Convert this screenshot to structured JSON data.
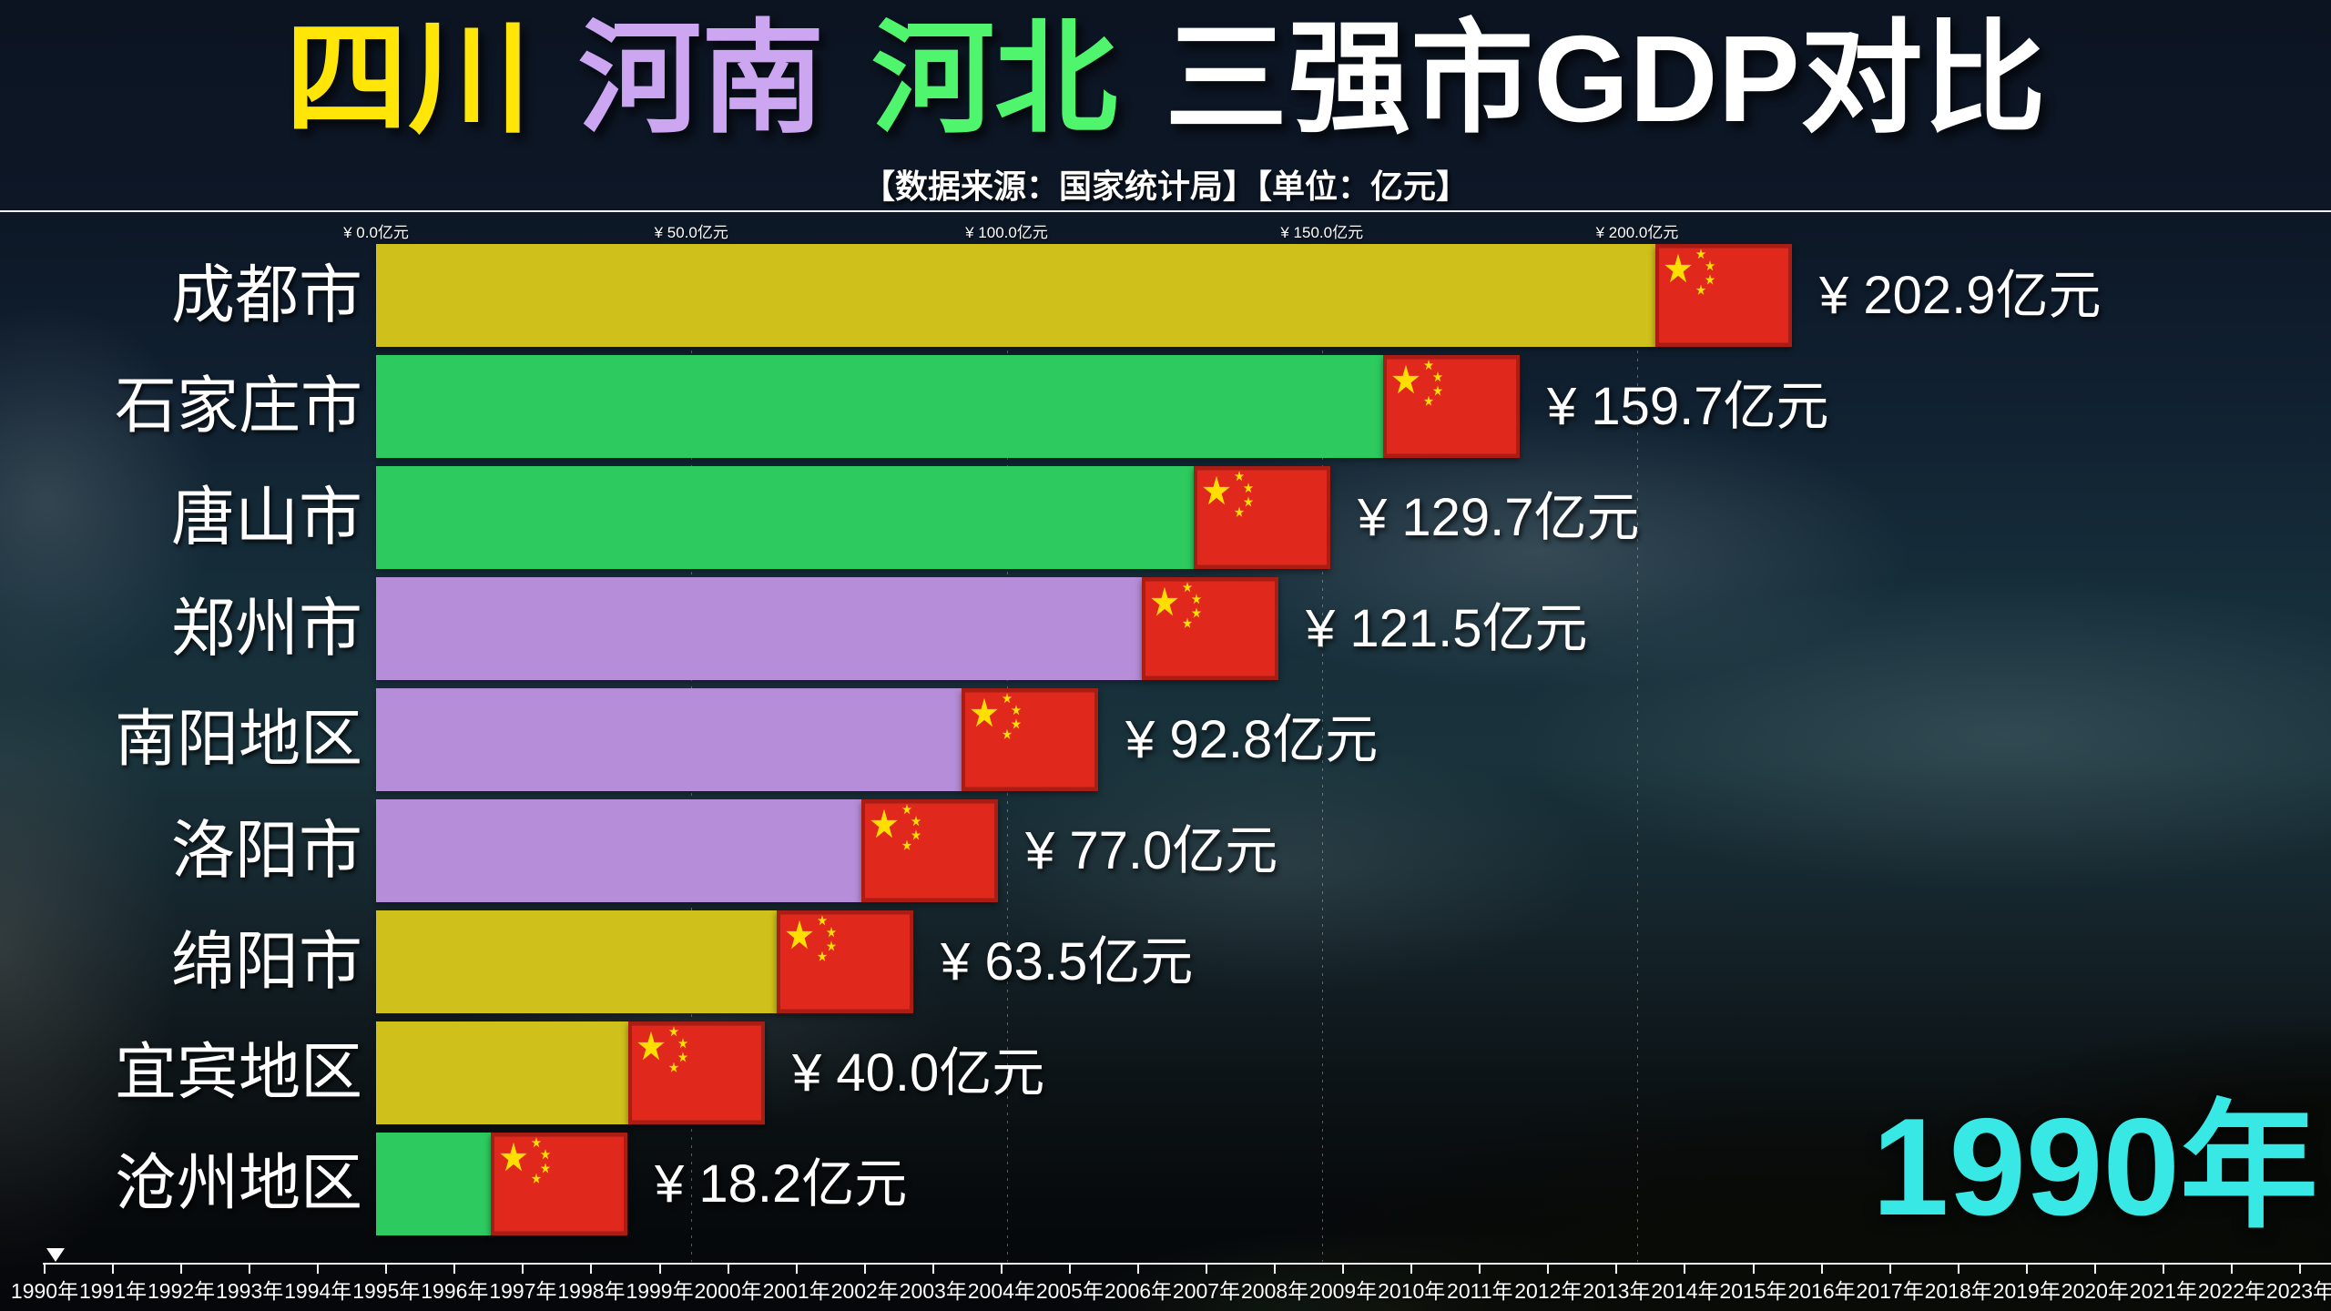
{
  "title": {
    "segments": [
      {
        "text": "四川",
        "color": "#ffe608"
      },
      {
        "text": "河南",
        "color": "#cda6f2"
      },
      {
        "text": "河北",
        "color": "#50f56e"
      },
      {
        "text": "三强市GDP对比",
        "color": "#ffffff"
      }
    ],
    "subtitle": "【数据来源：国家统计局】【单位：亿元】"
  },
  "chart_data": {
    "type": "bar",
    "orientation": "horizontal",
    "title": "四川 河南 河北 三强市GDP对比",
    "unit": "亿元",
    "current_year": "1990年",
    "x_axis": {
      "min": 0,
      "max": 200,
      "ticks": [
        {
          "value": 0,
          "label": "¥ 0.0亿元"
        },
        {
          "value": 50,
          "label": "¥ 50.0亿元"
        },
        {
          "value": 100,
          "label": "¥ 100.0亿元"
        },
        {
          "value": 150,
          "label": "¥ 150.0亿元"
        },
        {
          "value": 200,
          "label": "¥ 200.0亿元"
        }
      ]
    },
    "legend": [
      {
        "province": "四川",
        "color": "#cfc01b"
      },
      {
        "province": "河南",
        "color": "#b58dd8"
      },
      {
        "province": "河北",
        "color": "#2dcb5f"
      }
    ],
    "bars": [
      {
        "city": "成都市",
        "province": "四川",
        "value": 202.9,
        "display": "¥ 202.9亿元"
      },
      {
        "city": "石家庄市",
        "province": "河北",
        "value": 159.7,
        "display": "¥ 159.7亿元"
      },
      {
        "city": "唐山市",
        "province": "河北",
        "value": 129.7,
        "display": "¥ 129.7亿元"
      },
      {
        "city": "郑州市",
        "province": "河南",
        "value": 121.5,
        "display": "¥ 121.5亿元"
      },
      {
        "city": "南阳地区",
        "province": "河南",
        "value": 92.8,
        "display": "¥ 92.8亿元"
      },
      {
        "city": "洛阳市",
        "province": "河南",
        "value": 77.0,
        "display": "¥ 77.0亿元"
      },
      {
        "city": "绵阳市",
        "province": "四川",
        "value": 63.5,
        "display": "¥ 63.5亿元"
      },
      {
        "city": "宜宾地区",
        "province": "四川",
        "value": 40.0,
        "display": "¥ 40.0亿元"
      },
      {
        "city": "沧州地区",
        "province": "河北",
        "value": 18.2,
        "display": "¥ 18.2亿元"
      }
    ],
    "timeline_years": [
      "1990年",
      "1991年",
      "1992年",
      "1993年",
      "1994年",
      "1995年",
      "1996年",
      "1997年",
      "1998年",
      "1999年",
      "2000年",
      "2001年",
      "2002年",
      "2003年",
      "2004年",
      "2005年",
      "2006年",
      "2007年",
      "2008年",
      "2009年",
      "2010年",
      "2011年",
      "2012年",
      "2013年",
      "2014年",
      "2015年",
      "2016年",
      "2017年",
      "2018年",
      "2019年",
      "2020年",
      "2021年",
      "2022年",
      "2023年"
    ]
  },
  "colors": {
    "background_top": "#0d1726",
    "bar_sichuan": "#cfc01b",
    "bar_henan": "#b58dd8",
    "bar_hebei": "#2dcb5f",
    "flag_red": "#e0281c",
    "flag_star": "#ffde00",
    "current_year": "#38e8e4",
    "axis_text": "#ffffff"
  }
}
